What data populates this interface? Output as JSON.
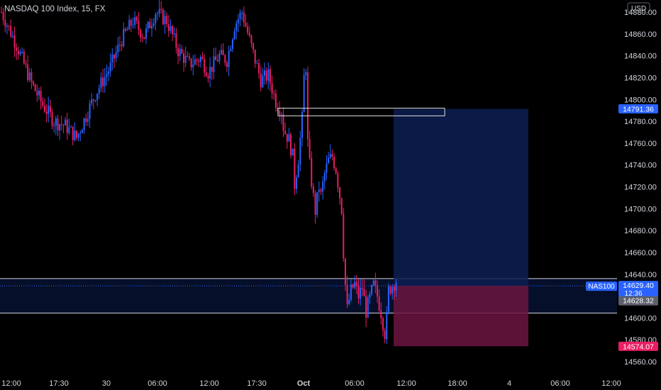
{
  "header": {
    "title": "NASDAQ 100 Index, 15, FX"
  },
  "currency": "USD",
  "colors": {
    "up": "#2962ff",
    "down": "#e91e63",
    "background": "#000000",
    "text": "#d1d4dc",
    "zone": "#0b1b4a",
    "target": "#0d1e52",
    "stop": "#6b1540",
    "price_tag": "#2962ff",
    "stop_tag": "#e91e63",
    "gray_tag": "#5d606b"
  },
  "yaxis": {
    "ticks": [
      "14560.00",
      "14580.00",
      "14600.00",
      "14620.00",
      "14640.00",
      "14660.00",
      "14680.00",
      "14700.00",
      "14720.00",
      "14740.00",
      "14760.00",
      "14780.00",
      "14800.00",
      "14820.00",
      "14840.00",
      "14860.00",
      "14880.00"
    ]
  },
  "xaxis": {
    "ticks": [
      "12:00",
      "17:30",
      "30",
      "06:00",
      "12:00",
      "17:30",
      "Oct",
      "06:00",
      "12:00",
      "18:00",
      "4",
      "06:00",
      "12:00"
    ]
  },
  "labels": {
    "symbol": "NAS100",
    "last_price": "14629.40",
    "countdown": "12:36",
    "ref_price": "14628.32",
    "target_price": "14791.36",
    "stop_price": "14574.07"
  },
  "chart_data": {
    "type": "candlestick",
    "title": "NASDAQ 100 Index, 15, FX",
    "ylabel": "USD",
    "ylim": [
      14552,
      14892
    ],
    "interval": "15",
    "x_ticks": [
      "12:00",
      "17:30",
      "30",
      "06:00",
      "12:00",
      "17:30",
      "Oct",
      "06:00",
      "12:00",
      "18:00",
      "4",
      "06:00",
      "12:00"
    ],
    "close_path": [
      [
        0,
        14880
      ],
      [
        8,
        14850
      ],
      [
        16,
        14815
      ],
      [
        22,
        14795
      ],
      [
        28,
        14780
      ],
      [
        34,
        14776
      ],
      [
        40,
        14765
      ],
      [
        50,
        14805
      ],
      [
        58,
        14830
      ],
      [
        64,
        14855
      ],
      [
        70,
        14872
      ],
      [
        76,
        14858
      ],
      [
        82,
        14880
      ],
      [
        88,
        14872
      ],
      [
        94,
        14845
      ],
      [
        100,
        14832
      ],
      [
        106,
        14838
      ],
      [
        110,
        14825
      ],
      [
        116,
        14840
      ],
      [
        120,
        14836
      ],
      [
        124,
        14868
      ],
      [
        128,
        14880
      ],
      [
        134,
        14842
      ],
      [
        138,
        14818
      ],
      [
        142,
        14822
      ],
      [
        146,
        14798
      ],
      [
        149,
        14790
      ],
      [
        150,
        14775
      ],
      [
        151,
        14770
      ],
      [
        153,
        14763
      ],
      [
        155,
        14748
      ],
      [
        156,
        14722
      ],
      [
        158,
        14746
      ],
      [
        160,
        14782
      ],
      [
        161,
        14820
      ],
      [
        162,
        14830
      ],
      [
        163,
        14760
      ],
      [
        164,
        14740
      ],
      [
        166,
        14710
      ],
      [
        167,
        14698
      ],
      [
        169,
        14720
      ],
      [
        170,
        14712
      ],
      [
        172,
        14732
      ],
      [
        174,
        14744
      ],
      [
        176,
        14748
      ],
      [
        178,
        14736
      ],
      [
        181,
        14700
      ],
      [
        182,
        14660
      ],
      [
        183,
        14630
      ],
      [
        184,
        14608
      ],
      [
        186,
        14625
      ],
      [
        188,
        14631
      ],
      [
        190,
        14620
      ],
      [
        192,
        14628
      ],
      [
        194,
        14606
      ],
      [
        196,
        14618
      ],
      [
        198,
        14630
      ],
      [
        200,
        14620
      ],
      [
        202,
        14605
      ],
      [
        204,
        14586
      ],
      [
        205,
        14600
      ],
      [
        206,
        14625
      ],
      [
        208,
        14630
      ],
      [
        210,
        14634
      ]
    ],
    "annotations": {
      "target_price": 14791.36,
      "last_price": 14629.4,
      "ref_price": 14628.32,
      "stop_price": 14574.07,
      "zone_lines": [
        14636.0,
        14604.5
      ],
      "rectangle_range": [
        14785.0,
        14792.0
      ]
    }
  }
}
